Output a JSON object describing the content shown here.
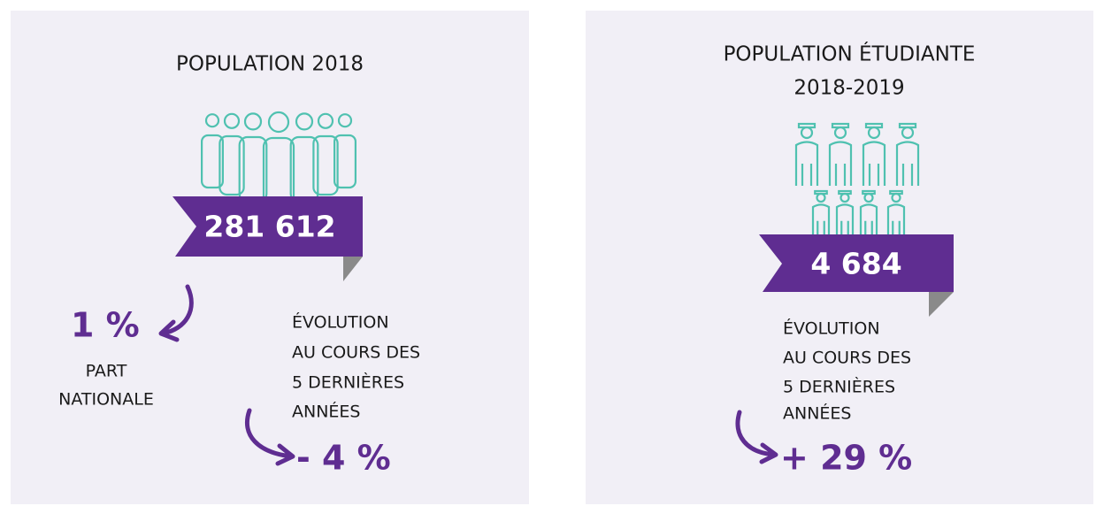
{
  "cards": [
    {
      "title": [
        "POPULATION 2018"
      ],
      "figure": "281 612",
      "share": {
        "value": "1 %",
        "label": [
          "PART",
          "NATIONALE"
        ]
      },
      "evolution": {
        "label": [
          "ÉVOLUTION",
          "AU COURS DES",
          "5 DERNIÈRES",
          "ANNÉES"
        ],
        "value": "- 4 %"
      }
    },
    {
      "title": [
        "POPULATION ÉTUDIANTE",
        "2018-2019"
      ],
      "figure": "4 684",
      "evolution": {
        "label": [
          "ÉVOLUTION",
          "AU COURS DES",
          "5 DERNIÈRES",
          "ANNÉES"
        ],
        "value": "+ 29 %"
      }
    }
  ]
}
